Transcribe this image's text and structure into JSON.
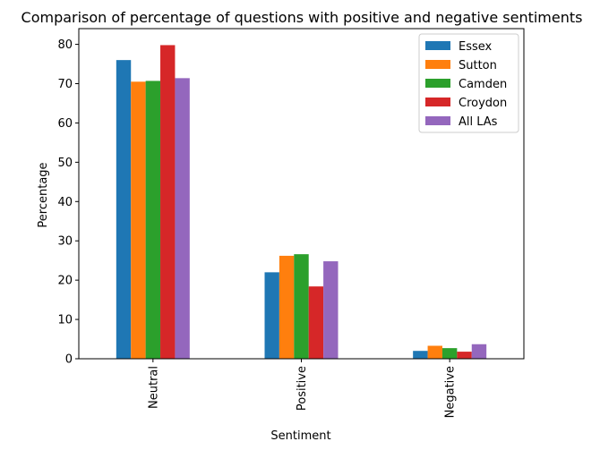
{
  "chart_data": {
    "type": "bar",
    "title": "Comparison of percentage of questions with positive and negative sentiments",
    "xlabel": "Sentiment",
    "ylabel": "Percentage",
    "categories": [
      "Neutral",
      "Positive",
      "Negative"
    ],
    "ylim": [
      0,
      84
    ],
    "yticks": [
      0,
      10,
      20,
      30,
      40,
      50,
      60,
      70,
      80
    ],
    "grid": false,
    "legend_position": "top-right",
    "series": [
      {
        "name": "Essex",
        "color": "#1f77b4",
        "values": [
          76.0,
          22.0,
          2.0
        ]
      },
      {
        "name": "Sutton",
        "color": "#ff7f0e",
        "values": [
          70.5,
          26.2,
          3.3
        ]
      },
      {
        "name": "Camden",
        "color": "#2ca02c",
        "values": [
          70.7,
          26.6,
          2.7
        ]
      },
      {
        "name": "Croydon",
        "color": "#d62728",
        "values": [
          79.8,
          18.4,
          1.8
        ]
      },
      {
        "name": "All LAs",
        "color": "#9467bd",
        "values": [
          71.4,
          24.8,
          3.7
        ]
      }
    ]
  }
}
